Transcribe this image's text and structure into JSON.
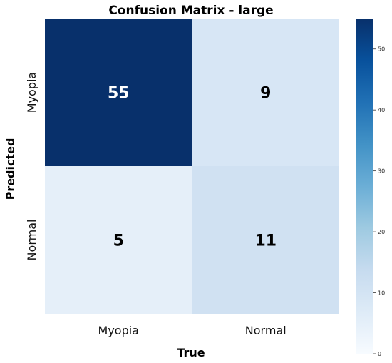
{
  "chart_data": {
    "type": "heatmap",
    "title": "Confusion Matrix - large",
    "xlabel": "True",
    "ylabel": "Predicted",
    "x_categories": [
      "Myopia",
      "Normal"
    ],
    "y_categories": [
      "Myopia",
      "Normal"
    ],
    "values": [
      [
        55,
        9
      ],
      [
        5,
        11
      ]
    ],
    "colormap": "Blues",
    "colorbar": {
      "range": [
        0,
        55
      ],
      "ticks": [
        "0",
        "10",
        "20",
        "30",
        "40",
        "50"
      ],
      "low_color": "#f7fbff",
      "high_color": "#08306b"
    },
    "grid": false,
    "legend": "colorbar-right"
  }
}
